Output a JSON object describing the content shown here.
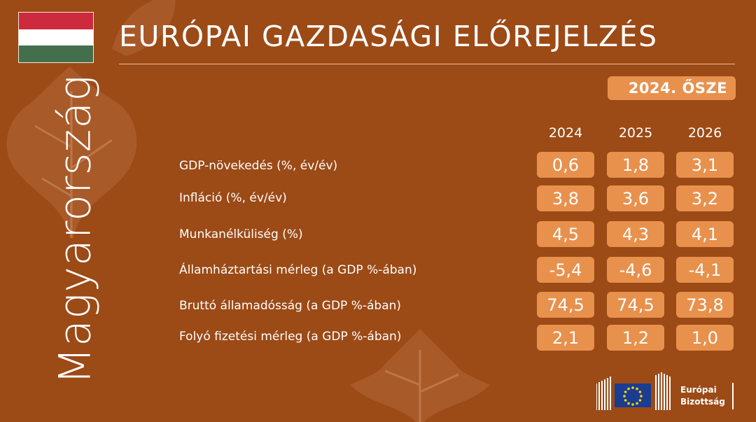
{
  "country": {
    "name": "Magyarország",
    "flag_colors": [
      "#cd2a3e",
      "#ffffff",
      "#436f4d"
    ]
  },
  "title": "EURÓPAI GAZDASÁGI ELŐREJELZÉS",
  "season": "2024. ŐSZE",
  "years": [
    "2024",
    "2025",
    "2026"
  ],
  "rows": [
    {
      "label": "GDP-növekedés (%, év/év)",
      "values": [
        "0,6",
        "1,8",
        "3,1"
      ]
    },
    {
      "label": "Infláció (%, év/év)",
      "values": [
        "3,8",
        "3,6",
        "3,2"
      ]
    },
    {
      "label": "Munkanélküliség (%)",
      "values": [
        "4,5",
        "4,3",
        "4,1"
      ]
    },
    {
      "label": "Államháztartási mérleg (a GDP %-ában)",
      "values": [
        "-5,4",
        "-4,6",
        "-4,1"
      ]
    },
    {
      "label": "Bruttó államadósság (a GDP %-ában)",
      "values": [
        "74,5",
        "74,5",
        "73,8"
      ]
    },
    {
      "label": "Folyó fizetési mérleg (a GDP %-ában)",
      "values": [
        "2,1",
        "1,2",
        "1,0"
      ]
    }
  ],
  "logo": {
    "line1": "Európai",
    "line2": "Bizottság",
    "icon": "eu-flag-icon"
  },
  "colors": {
    "background": "#9c4a16",
    "accent": "#e8914d",
    "text": "#ffffff"
  }
}
